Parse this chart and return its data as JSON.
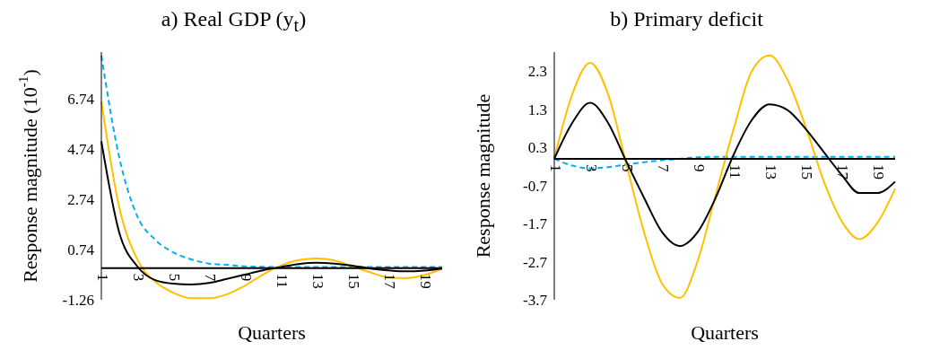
{
  "chart_data": [
    {
      "type": "line",
      "title": "a) Real GDP (y$_{t}$)",
      "xlabel": "Quarters",
      "ylabel": "Response magnitude (10$^{-1}$)",
      "categories": [
        "1",
        null,
        "3",
        null,
        "5",
        null,
        "7",
        null,
        "9",
        null,
        "11",
        null,
        "13",
        null,
        "15",
        null,
        "17",
        null,
        "19",
        null
      ],
      "ylim": [
        -1.26,
        8.6
      ],
      "yticks": [
        -1.26,
        0.74,
        2.74,
        4.74,
        6.74
      ],
      "grid": false,
      "legend": false,
      "marker": "none",
      "series": [
        {
          "color": "#00b0f0",
          "line_style": "dashed",
          "values": [
            8.46,
            4.4,
            2.07,
            1.13,
            0.63,
            0.35,
            0.18,
            0.13,
            0.07,
            0.05,
            0.04,
            0.04,
            0.04,
            0.04,
            0.04,
            0.04,
            0.04,
            0.04,
            0.04,
            0.04
          ]
        },
        {
          "color": "#ffc000",
          "line_style": "solid",
          "values": [
            6.63,
            2.41,
            0.35,
            -0.54,
            -0.98,
            -1.2,
            -1.2,
            -1.04,
            -0.7,
            -0.26,
            0.1,
            0.32,
            0.38,
            0.3,
            0.07,
            -0.17,
            -0.37,
            -0.4,
            -0.28,
            -0.02
          ]
        },
        {
          "color": "#000000",
          "line_style": "solid",
          "values": [
            5.05,
            1.41,
            0.07,
            -0.48,
            -0.62,
            -0.65,
            -0.59,
            -0.43,
            -0.26,
            -0.09,
            0.04,
            0.16,
            0.21,
            0.18,
            0.1,
            -0.02,
            -0.09,
            -0.13,
            -0.1,
            -0.02
          ]
        }
      ]
    },
    {
      "type": "line",
      "title": "b) Primary deficit",
      "xlabel": "Quarters",
      "ylabel": "Response magnitude",
      "categories": [
        "1",
        null,
        "3",
        null,
        "5",
        null,
        "7",
        null,
        "9",
        null,
        "11",
        null,
        "13",
        null,
        "15",
        null,
        "17",
        null,
        "19",
        null
      ],
      "ylim": [
        -3.7,
        2.8
      ],
      "yticks": [
        -3.7,
        -2.7,
        -1.7,
        -0.7,
        0.3,
        1.3,
        2.3
      ],
      "grid": false,
      "legend": false,
      "marker": "none",
      "series": [
        {
          "color": "#00b0f0",
          "line_style": "dashed",
          "values": [
            0,
            -0.18,
            -0.25,
            -0.22,
            -0.15,
            -0.09,
            -0.04,
            0,
            0.04,
            0.05,
            0.05,
            0.05,
            0.05,
            0.05,
            0.05,
            0.05,
            0.05,
            0.05,
            0.05,
            0.05
          ]
        },
        {
          "color": "#ffc000",
          "line_style": "solid",
          "values": [
            0,
            1.69,
            2.52,
            1.69,
            -0.11,
            -1.92,
            -3.27,
            -3.65,
            -2.67,
            -0.94,
            0.79,
            2.29,
            2.71,
            2.07,
            0.86,
            -0.56,
            -1.62,
            -2.11,
            -1.69,
            -0.79
          ]
        },
        {
          "color": "#000000",
          "line_style": "solid",
          "values": [
            0,
            0.94,
            1.47,
            0.94,
            -0.06,
            -1.02,
            -1.92,
            -2.29,
            -1.92,
            -1.02,
            0.11,
            1.01,
            1.43,
            1.28,
            0.79,
            0.19,
            -0.41,
            -0.9,
            -0.9,
            -0.6
          ]
        }
      ]
    }
  ]
}
